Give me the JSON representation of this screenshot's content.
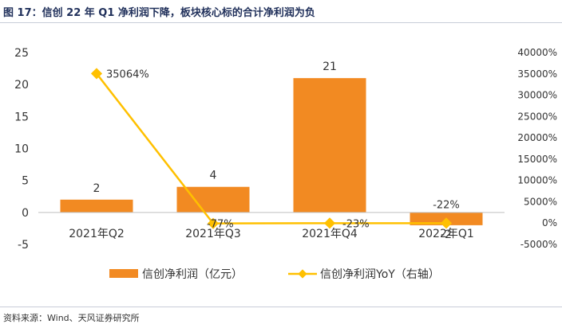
{
  "title": "图 17：信创 22 年 Q1 净利润下降，板块核心标的合计净利润为负",
  "source": "资料来源：Wind、天风证券研究所",
  "colors": {
    "bar": "#F28A22",
    "line": "#FFC000",
    "axis": "#BFBFBF",
    "text": "#333333"
  },
  "chart_data": {
    "type": "bar",
    "categories": [
      "2021年Q2",
      "2021年Q3",
      "2021年Q4",
      "2022年Q1"
    ],
    "series": [
      {
        "name": "信创净利润（亿元）",
        "type": "bar",
        "axis": "left",
        "values": [
          2,
          4,
          21,
          -2
        ],
        "labels": [
          "2",
          "4",
          "21",
          "-2"
        ]
      },
      {
        "name": "信创净利润YoY（右轴）",
        "type": "line",
        "axis": "right",
        "values": [
          35064,
          -77,
          -23,
          -22
        ],
        "labels": [
          "35064%",
          "-77%",
          "-23%",
          "-22%"
        ]
      }
    ],
    "y_left": {
      "range": [
        -5,
        25
      ],
      "ticks": [
        "-5",
        "0",
        "5",
        "10",
        "15",
        "20",
        "25"
      ]
    },
    "y_right": {
      "range": [
        -5000,
        40000
      ],
      "ticks": [
        "-5000%",
        "0%",
        "5000%",
        "10000%",
        "15000%",
        "20000%",
        "25000%",
        "30000%",
        "35000%",
        "40000%"
      ]
    },
    "legend_position": "bottom",
    "grid": false
  }
}
